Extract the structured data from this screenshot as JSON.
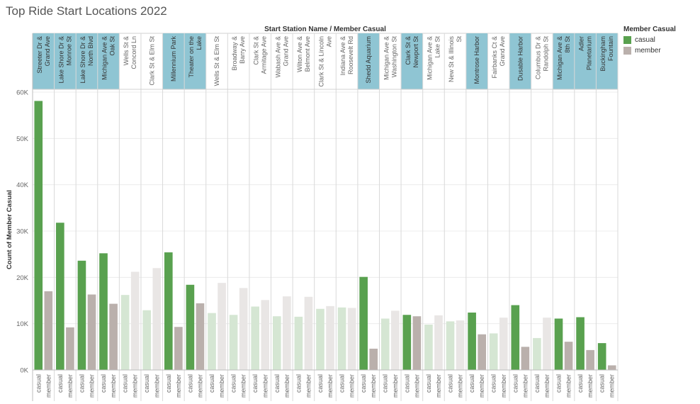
{
  "title": "Top Ride Start Locations 2022",
  "legend": {
    "title": "Member Casual",
    "items": [
      {
        "label": "casual",
        "color": "#59a14f"
      },
      {
        "label": "member",
        "color": "#bab0ac"
      }
    ]
  },
  "chart_data": {
    "type": "bar",
    "header_label": "Start Station Name  /  Member Casual",
    "ylabel": "Count of Member Casual",
    "ylim": [
      0,
      60000
    ],
    "yticks": [
      0,
      10000,
      20000,
      30000,
      40000,
      50000,
      60000
    ],
    "ytick_labels": [
      "0K",
      "10K",
      "20K",
      "30K",
      "40K",
      "50K",
      "60K"
    ],
    "subcategories": [
      "casual",
      "member"
    ],
    "colors": {
      "casual": "#59a14f",
      "member": "#bab0ac",
      "casual_faded": "#d5e6d3",
      "member_faded": "#e9e6e5",
      "highlight_header": "#8fc5d3"
    },
    "stations": [
      {
        "name": "Streeter Dr & Grand Ave",
        "lines": [
          "Streeter Dr &",
          "Grand Ave"
        ],
        "highlighted": true,
        "casual": 58100,
        "member": 17000
      },
      {
        "name": "Lake Shore Dr & Monroe St",
        "lines": [
          "Lake Shore Dr &",
          "Monroe St"
        ],
        "highlighted": true,
        "casual": 31800,
        "member": 9200
      },
      {
        "name": "Lake Shore Dr & North Blvd",
        "lines": [
          "Lake Shore Dr &",
          "North Blvd"
        ],
        "highlighted": true,
        "casual": 23600,
        "member": 16300
      },
      {
        "name": "Michigan Ave & Oak St",
        "lines": [
          "Michigan Ave &",
          "Oak St"
        ],
        "highlighted": true,
        "casual": 25200,
        "member": 14300
      },
      {
        "name": "Wells St & Concord Ln",
        "lines": [
          "Wells St &",
          "Concord Ln"
        ],
        "highlighted": false,
        "casual": 16200,
        "member": 21200
      },
      {
        "name": "Clark St & Elm St",
        "lines": [
          "Clark St & Elm St"
        ],
        "highlighted": false,
        "casual": 12900,
        "member": 22000
      },
      {
        "name": "Millennium Park",
        "lines": [
          "Millennium Park"
        ],
        "highlighted": true,
        "casual": 25400,
        "member": 9300
      },
      {
        "name": "Theater on the Lake",
        "lines": [
          "Theater on the",
          "Lake"
        ],
        "highlighted": true,
        "casual": 18400,
        "member": 14400
      },
      {
        "name": "Wells St & Elm St",
        "lines": [
          "Wells St & Elm St"
        ],
        "highlighted": false,
        "casual": 12300,
        "member": 18800
      },
      {
        "name": "Broadway & Barry Ave",
        "lines": [
          "Broadway &",
          "Barry Ave"
        ],
        "highlighted": false,
        "casual": 11900,
        "member": 17700
      },
      {
        "name": "Clark St & Armitage Ave",
        "lines": [
          "Clark St &",
          "Armitage Ave"
        ],
        "highlighted": false,
        "casual": 13700,
        "member": 15100
      },
      {
        "name": "Wabash Ave & Grand Ave",
        "lines": [
          "Wabash Ave &",
          "Grand Ave"
        ],
        "highlighted": false,
        "casual": 11600,
        "member": 15900
      },
      {
        "name": "Wilton Ave & Belmont Ave",
        "lines": [
          "Wilton Ave &",
          "Belmont Ave"
        ],
        "highlighted": false,
        "casual": 11500,
        "member": 15800
      },
      {
        "name": "Clark St & Lincoln Ave",
        "lines": [
          "Clark St & Lincoln",
          "Ave"
        ],
        "highlighted": false,
        "casual": 13200,
        "member": 13800
      },
      {
        "name": "Indiana Ave & Roosevelt Rd",
        "lines": [
          "Indiana Ave &",
          "Roosevelt Rd"
        ],
        "highlighted": false,
        "casual": 13500,
        "member": 13400
      },
      {
        "name": "Shedd Aquarium",
        "lines": [
          "Shedd Aquarium"
        ],
        "highlighted": true,
        "casual": 20100,
        "member": 4600
      },
      {
        "name": "Michigan Ave & Washington St",
        "lines": [
          "Michigan Ave &",
          "Washington St"
        ],
        "highlighted": false,
        "casual": 11100,
        "member": 12800
      },
      {
        "name": "Clark St & Newport St",
        "lines": [
          "Clark St &",
          "Newport St"
        ],
        "highlighted": true,
        "casual": 11900,
        "member": 11600
      },
      {
        "name": "Michigan Ave & Lake St",
        "lines": [
          "Michigan Ave &",
          "Lake St"
        ],
        "highlighted": false,
        "casual": 9800,
        "member": 11800
      },
      {
        "name": "New St & Illinois St",
        "lines": [
          "New St & Illinois",
          "St"
        ],
        "highlighted": false,
        "casual": 10500,
        "member": 10700
      },
      {
        "name": "Montrose Harbor",
        "lines": [
          "Montrose Harbor"
        ],
        "highlighted": true,
        "casual": 12400,
        "member": 7700
      },
      {
        "name": "Fairbanks Ct & Grand Ave",
        "lines": [
          "Fairbanks Ct &",
          "Grand Ave"
        ],
        "highlighted": false,
        "casual": 7900,
        "member": 11300
      },
      {
        "name": "Dusable Harbor",
        "lines": [
          "Dusable Harbor"
        ],
        "highlighted": true,
        "casual": 14000,
        "member": 5000
      },
      {
        "name": "Columbus Dr & Randolph St",
        "lines": [
          "Columbus Dr &",
          "Randolph St"
        ],
        "highlighted": false,
        "casual": 6900,
        "member": 11300
      },
      {
        "name": "Michigan Ave & 8th St",
        "lines": [
          "Michigan Ave &",
          "8th St"
        ],
        "highlighted": true,
        "casual": 11100,
        "member": 6100
      },
      {
        "name": "Adler Planetarium",
        "lines": [
          "Adler",
          "Planetarium"
        ],
        "highlighted": true,
        "casual": 11400,
        "member": 4300
      },
      {
        "name": "Buckingham Fountain",
        "lines": [
          "Buckingham",
          "Fountain"
        ],
        "highlighted": true,
        "casual": 5800,
        "member": 1000
      }
    ]
  }
}
